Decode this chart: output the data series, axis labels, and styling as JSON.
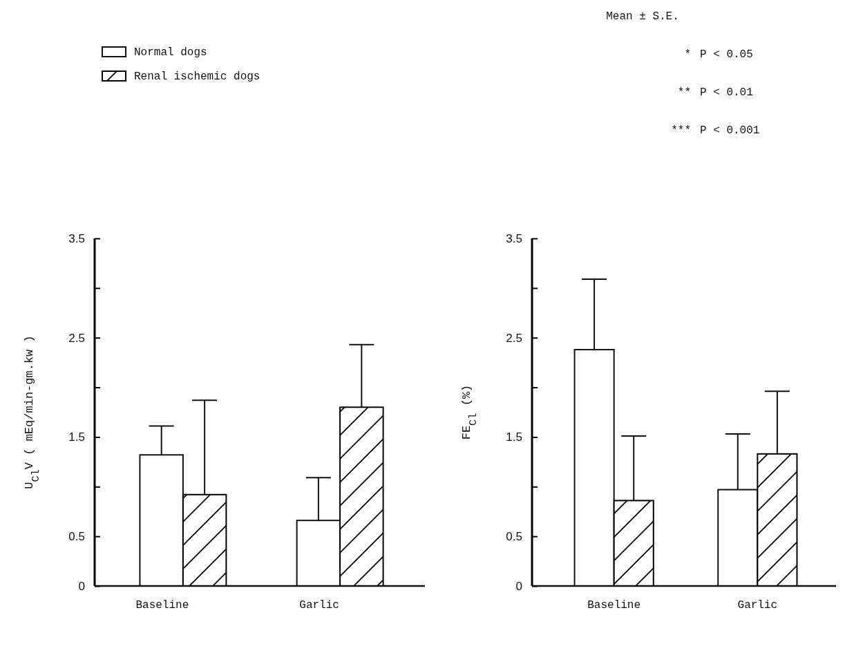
{
  "chart_data": [
    {
      "type": "bar",
      "ylabel": "U$_{Cl}$V ( mEq/min-gm.kw )",
      "categories": [
        "Baseline",
        "Garlic"
      ],
      "series": [
        {
          "name": "Normal dogs",
          "color": "#ffffff",
          "values": [
            1.32,
            0.66
          ],
          "errors": [
            [
              1.32,
              1.61
            ],
            [
              0.66,
              1.09
            ]
          ]
        },
        {
          "name": "Renal ischemic dogs",
          "color": "#000000",
          "values": [
            0.92,
            1.8
          ],
          "errors": [
            [
              0.92,
              1.87
            ],
            [
              1.8,
              2.43
            ]
          ]
        }
      ],
      "ylim": [
        0,
        3.5
      ],
      "yticks": [
        0,
        0.5,
        {
          "value": 1,
          "label": null
        },
        1.5,
        {
          "value": 2,
          "label": null
        },
        2.5,
        {
          "value": 3,
          "label": null
        },
        3.5
      ],
      "grid": false,
      "legend": "top left"
    },
    {
      "type": "bar",
      "ylabel": "FE$_{Cl}$ (%)",
      "categories": [
        "Baseline",
        "Garlic"
      ],
      "series": [
        {
          "color": "#ffffff",
          "values": [
            2.38,
            0.97
          ],
          "errors": [
            [
              2.38,
              3.09
            ],
            [
              0.97,
              1.53
            ]
          ]
        },
        {
          "color": "#000000",
          "values": [
            0.86,
            1.33
          ],
          "errors": [
            [
              0.86,
              1.51
            ],
            [
              1.33,
              1.96
            ]
          ]
        }
      ],
      "ylim": [
        0,
        3.5
      ],
      "yticks": [
        0,
        0.5,
        {
          "value": 1,
          "label": null
        },
        1.5,
        {
          "value": 2,
          "label": null
        },
        2.5,
        {
          "value": 3,
          "label": null
        },
        3.5
      ],
      "grid": false,
      "legend": false,
      "annotations": [
        "Mean ± S.E.",
        "* P < 0.05",
        "** P < 0.01",
        "*** P < 0.001"
      ]
    }
  ]
}
